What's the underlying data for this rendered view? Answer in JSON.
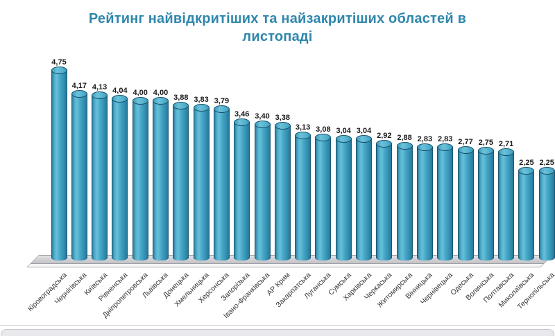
{
  "title": {
    "line1": "Рейтинг найвідкритіших та найзакритіших областей в",
    "line2": "листопаді"
  },
  "chart_data": {
    "type": "bar",
    "style": "3d-cylinder",
    "title": "Рейтинг найвідкритіших та найзакритіших областей в листопаді",
    "xlabel": "",
    "ylabel": "",
    "ylim": [
      0,
      5
    ],
    "grid": false,
    "legend": false,
    "categories": [
      "Кіровоградська",
      "Чернігівська",
      "Київська",
      "Рівненська",
      "Дніпропетровська",
      "Львівська",
      "Донецька",
      "Хмельницька",
      "Херсонська",
      "Запорізька",
      "Івано-Франківська",
      "АР Крим",
      "Закарпатська",
      "Луганська",
      "Сумська",
      "Харківська",
      "Черкаська",
      "Житомирська",
      "Вінницька",
      "Чернівецька",
      "Одеська",
      "Волинська",
      "Полтавська",
      "Миколаївська",
      "Тернопільська"
    ],
    "values": [
      4.75,
      4.17,
      4.13,
      4.04,
      4.0,
      4.0,
      3.88,
      3.83,
      3.79,
      3.46,
      3.4,
      3.38,
      3.13,
      3.08,
      3.04,
      3.04,
      2.92,
      2.88,
      2.83,
      2.83,
      2.77,
      2.75,
      2.71,
      2.25,
      2.25
    ],
    "value_labels": [
      "4,75",
      "4,17",
      "4,13",
      "4,04",
      "4,00",
      "4,00",
      "3,88",
      "3,83",
      "3,79",
      "3,46",
      "3,40",
      "3,38",
      "3,13",
      "3,08",
      "3,04",
      "3,04",
      "2,92",
      "2,88",
      "2,83",
      "2,83",
      "2,77",
      "2,75",
      "2,71",
      "2,25",
      "2,25"
    ],
    "colors": {
      "bar_fill": "#3fa2c2",
      "bar_edge": "#1b5a75",
      "title_text": "#2e87ac",
      "value_label_text": "#1a1a1a",
      "category_label_text": "#3a3a3a",
      "floor": "#d2d2d6"
    }
  }
}
